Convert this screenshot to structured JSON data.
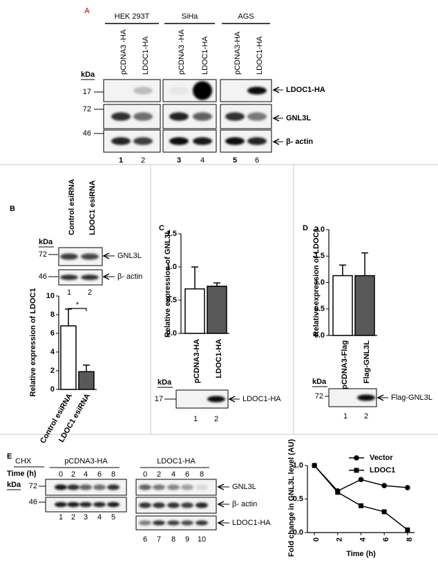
{
  "panel_a": {
    "letter": "A",
    "groups": [
      {
        "name": "HEK 293T",
        "lanes": [
          "pCDNA3 -HA",
          "LDOC1-HA"
        ]
      },
      {
        "name": "SiHa",
        "lanes": [
          "pCDNA3 -HA",
          "LDOC1-HA"
        ]
      },
      {
        "name": "AGS",
        "lanes": [
          "pCDNA3-HA",
          "LDOC1-HA"
        ]
      }
    ],
    "kda": "kDa",
    "markers": [
      17,
      72,
      46
    ],
    "bands": [
      "LDOC1-HA",
      "GNL3L",
      "β- actin"
    ],
    "lane_numbers": [
      1,
      2,
      3,
      4,
      5,
      6
    ]
  },
  "panel_b": {
    "letter": "B",
    "lanes": [
      "Control esiRNA",
      "LDOC1 esiRNA"
    ],
    "kda": "kDa",
    "markers": [
      72,
      46
    ],
    "bands": [
      "GNL3L",
      "β- actin"
    ],
    "lane_numbers": [
      1,
      2
    ]
  },
  "panel_c": {
    "letter": "C",
    "kda": "kDa",
    "markers": [
      17
    ],
    "bands": [
      "LDOC1-HA"
    ],
    "lane_numbers": [
      1,
      2
    ]
  },
  "panel_d": {
    "letter": "D",
    "kda": "kDa",
    "markers": [
      72
    ],
    "bands": [
      "Flag-GNL3L"
    ],
    "lane_numbers": [
      1,
      2
    ]
  },
  "panel_e": {
    "letter": "E",
    "treatment": "CHX",
    "time_label": "Time (h)",
    "kda": "kDa",
    "groups": [
      {
        "name": "pCDNA3-HA",
        "times": [
          0,
          2,
          4,
          6,
          8
        ],
        "lane_numbers": [
          1,
          2,
          3,
          4,
          5
        ]
      },
      {
        "name": "LDOC1-HA",
        "times": [
          0,
          2,
          4,
          6,
          8
        ],
        "lane_numbers": [
          6,
          7,
          8,
          9,
          10
        ]
      }
    ],
    "markers": [
      72,
      46
    ],
    "bands": [
      "GNL3L",
      "β- actin",
      "LDOC1-HA"
    ]
  },
  "chart_data": [
    {
      "type": "bar",
      "ylabel": "Relative expression of LDOC1",
      "categories": [
        "Control esiRNA",
        "LDOC1 esiRNA"
      ],
      "values": [
        6.8,
        1.9
      ],
      "errors": [
        1.8,
        0.7
      ],
      "colors": [
        "#ffffff",
        "#595959"
      ],
      "ylim": [
        0,
        10
      ],
      "yticks": [
        0,
        2,
        4,
        6,
        8,
        10
      ],
      "significance": "*"
    },
    {
      "type": "bar",
      "ylabel": "Relative expression of GNL3L",
      "categories": [
        "pCDNA3-HA",
        "LDOC1-HA"
      ],
      "values": [
        0.67,
        0.71
      ],
      "errors": [
        0.33,
        0.05
      ],
      "colors": [
        "#ffffff",
        "#595959"
      ],
      "ylim": [
        0,
        1.5
      ],
      "yticks": [
        {
          "value": 0,
          "label": "0.0"
        },
        0.5,
        {
          "value": 1,
          "label": "1.0"
        },
        1.5
      ]
    },
    {
      "type": "bar",
      "ylabel": "Relative expression of LDOC1",
      "categories": [
        "pCDNA3-Flag",
        "Flag-GNL3L"
      ],
      "values": [
        1.13,
        1.13
      ],
      "errors": [
        0.2,
        0.43
      ],
      "colors": [
        "#ffffff",
        "#595959"
      ],
      "ylim": [
        0,
        2
      ],
      "yticks": [
        {
          "value": 0,
          "label": "0.0"
        },
        0.5,
        {
          "value": 1,
          "label": "1.0"
        },
        1.5,
        {
          "value": 2,
          "label": "2.0"
        }
      ]
    },
    {
      "type": "line",
      "xlabel": "Time (h)",
      "ylabel": "Fold change in GNL3L level (AU)",
      "x": [
        0,
        2,
        4,
        6,
        8
      ],
      "xlim": [
        -0.6,
        8.6
      ],
      "xticks": [
        0,
        2,
        4,
        6,
        8
      ],
      "ylim": [
        0,
        1
      ],
      "yticks": [
        {
          "value": 0,
          "label": "0.0"
        },
        0.5,
        {
          "value": 1,
          "label": "1.0"
        }
      ],
      "legend": "upper right",
      "series": [
        {
          "name": "Vector",
          "color": "#000000",
          "marker": "circle",
          "values": [
            1.0,
            0.62,
            0.79,
            0.7,
            0.67
          ]
        },
        {
          "name": "LDOC1",
          "color": "#000000",
          "marker": "square",
          "values": [
            1.0,
            0.6,
            0.4,
            0.31,
            0.04
          ]
        }
      ]
    }
  ]
}
